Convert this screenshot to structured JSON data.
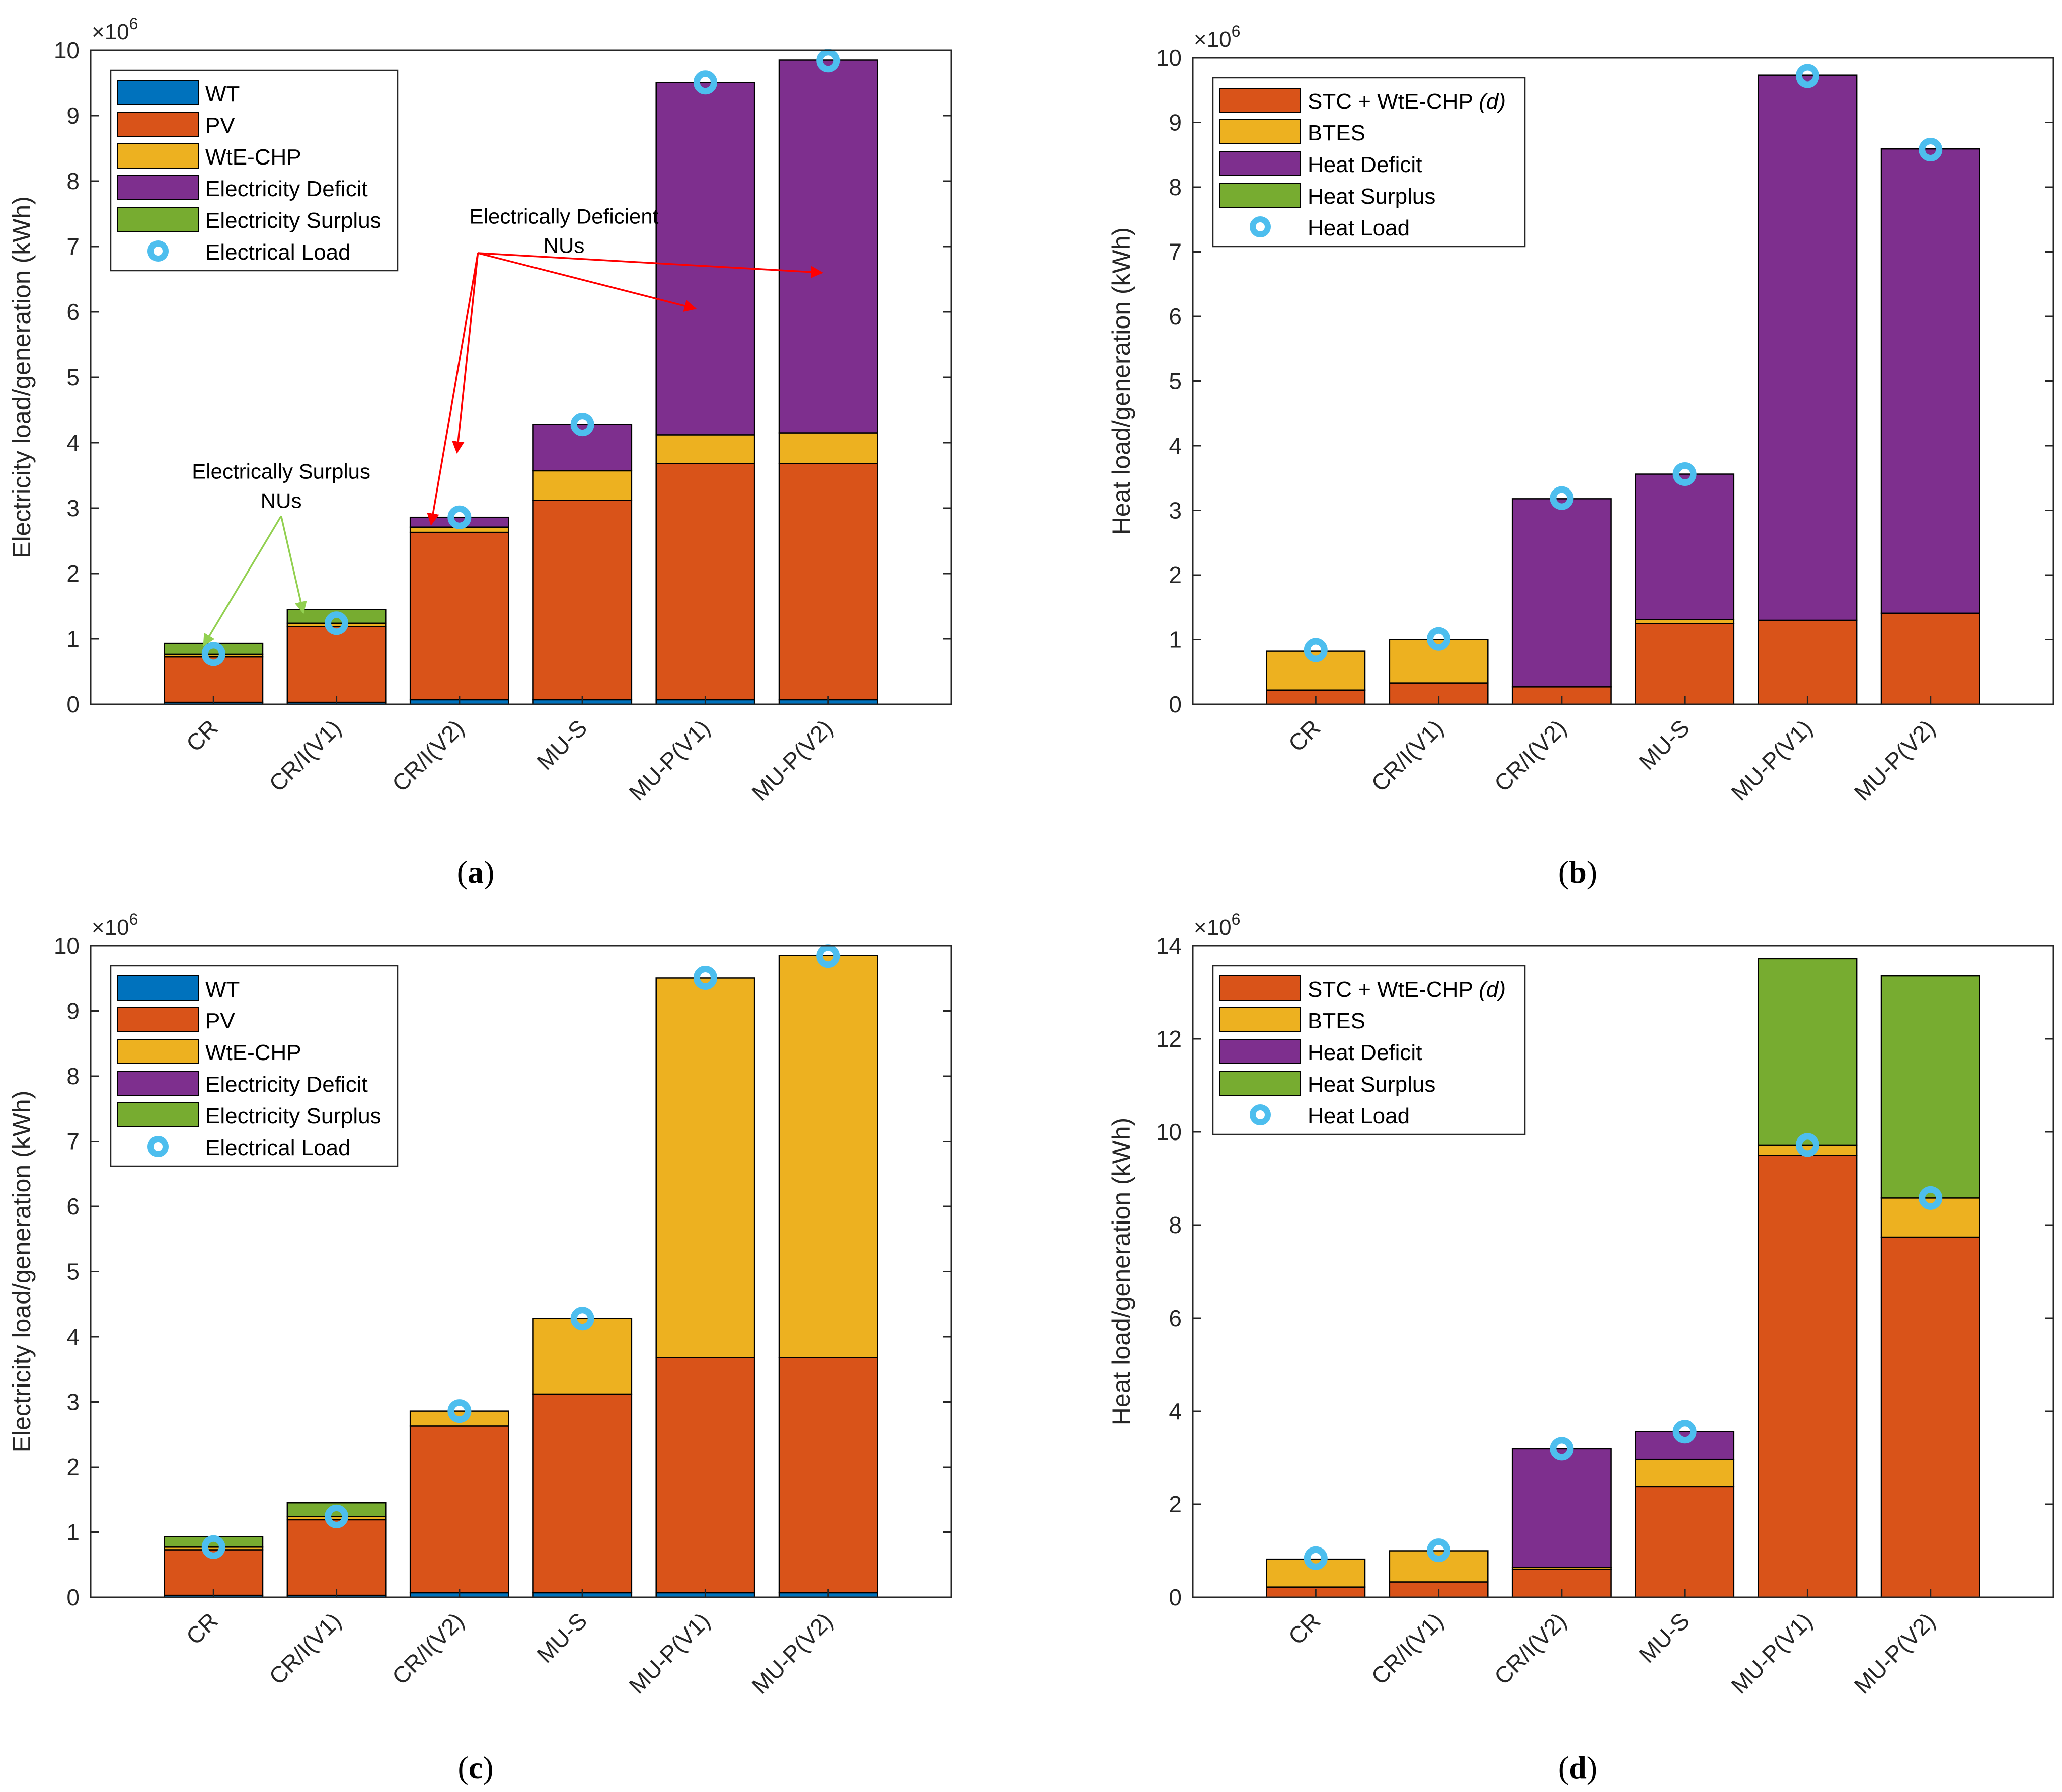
{
  "colors": {
    "WT": "#0072BD",
    "PV": "#D95319",
    "WtE": "#EDB120",
    "Deficit": "#7E2F8E",
    "Surplus": "#77AC30",
    "Load": "#4DBEEE",
    "red_arrow": "#FF0000",
    "green_arrow": "#92D050"
  },
  "chart_data": [
    {
      "id": "a",
      "type": "bar",
      "stacked": true,
      "panel_label": "(a)",
      "panel_letter": "a",
      "ylabel": "Electricity load/generation (kWh)",
      "exponent": "6",
      "ylim": [
        0,
        10
      ],
      "yticks": [
        0,
        1,
        2,
        3,
        4,
        5,
        6,
        7,
        8,
        9,
        10
      ],
      "categories": [
        "CR",
        "CR/I(V1)",
        "CR/I(V2)",
        "MU-S",
        "MU-P(V1)",
        "MU-P(V2)"
      ],
      "series": [
        {
          "name": "WT",
          "color_key": "WT",
          "values": [
            0.03,
            0.03,
            0.07,
            0.07,
            0.07,
            0.07
          ]
        },
        {
          "name": "PV",
          "color_key": "PV",
          "values": [
            0.7,
            1.16,
            2.56,
            3.05,
            3.61,
            3.61
          ]
        },
        {
          "name": "WtE-CHP",
          "color_key": "WtE",
          "values": [
            0.04,
            0.05,
            0.08,
            0.45,
            0.44,
            0.47
          ]
        },
        {
          "name": "Electricity Deficit",
          "color_key": "Deficit",
          "values": [
            0,
            0,
            0.15,
            0.71,
            5.39,
            5.7
          ]
        },
        {
          "name": "Electricity Surplus",
          "color_key": "Surplus",
          "values": [
            0.16,
            0.21,
            0,
            0,
            0,
            0
          ]
        }
      ],
      "load": {
        "name": "Electrical Load",
        "values": [
          0.77,
          1.24,
          2.86,
          4.28,
          9.51,
          9.84
        ]
      },
      "legend": {
        "entries": [
          "WT",
          "PV",
          "WtE-CHP",
          "Electricity Deficit",
          "Electricity Surplus"
        ],
        "load_label": "Electrical Load"
      },
      "annotations": [
        {
          "lines": [
            "Electrically Deficient",
            "NUs"
          ],
          "anchor_cat": 3.85,
          "anchor_val": 7.35,
          "color_key": "red_arrow",
          "from": [
            3.15,
            6.9
          ],
          "targets": [
            [
              2.77,
              2.75
            ],
            [
              2.98,
              3.85
            ],
            [
              4.92,
              6.05
            ],
            [
              5.95,
              6.6
            ]
          ]
        },
        {
          "lines": [
            "Electrically Surplus",
            "NUs"
          ],
          "anchor_cat": 1.55,
          "anchor_val": 3.45,
          "color_key": "green_arrow",
          "from": [
            1.55,
            2.88
          ],
          "targets": [
            [
              0.92,
              0.9
            ],
            [
              1.73,
              1.4
            ]
          ]
        }
      ]
    },
    {
      "id": "b",
      "type": "bar",
      "stacked": true,
      "panel_label": "(b)",
      "panel_letter": "b",
      "ylabel": "Heat load/generation (kWh)",
      "exponent": "6",
      "ylim": [
        0,
        10
      ],
      "yticks": [
        0,
        1,
        2,
        3,
        4,
        5,
        6,
        7,
        8,
        9,
        10
      ],
      "categories": [
        "CR",
        "CR/I(V1)",
        "CR/I(V2)",
        "MU-S",
        "MU-P(V1)",
        "MU-P(V2)"
      ],
      "series": [
        {
          "name": "STC + WtE-CHP (d)",
          "color_key": "PV",
          "values": [
            0.22,
            0.33,
            0.27,
            1.25,
            1.3,
            1.41
          ]
        },
        {
          "name": "BTES",
          "color_key": "WtE",
          "values": [
            0.6,
            0.67,
            0,
            0.06,
            0,
            0
          ]
        },
        {
          "name": "Heat Deficit",
          "color_key": "Deficit",
          "values": [
            0,
            0,
            2.91,
            2.25,
            8.43,
            7.18
          ]
        },
        {
          "name": "Heat Surplus",
          "color_key": "Surplus",
          "values": [
            0,
            0,
            0,
            0,
            0,
            0
          ]
        }
      ],
      "load": {
        "name": "Heat Load",
        "values": [
          0.84,
          1.01,
          3.19,
          3.56,
          9.72,
          8.58
        ]
      },
      "legend": {
        "entries": [
          "STC + WtE-CHP (d)",
          "BTES",
          "Heat Deficit",
          "Heat Surplus"
        ],
        "load_label": "Heat Load"
      },
      "annotations": []
    },
    {
      "id": "c",
      "type": "bar",
      "stacked": true,
      "panel_label": "(c)",
      "panel_letter": "c",
      "ylabel": "Electricity load/generation (kWh)",
      "exponent": "6",
      "ylim": [
        0,
        10
      ],
      "yticks": [
        0,
        1,
        2,
        3,
        4,
        5,
        6,
        7,
        8,
        9,
        10
      ],
      "categories": [
        "CR",
        "CR/I(V1)",
        "CR/I(V2)",
        "MU-S",
        "MU-P(V1)",
        "MU-P(V2)"
      ],
      "series": [
        {
          "name": "WT",
          "color_key": "WT",
          "values": [
            0.03,
            0.03,
            0.07,
            0.07,
            0.07,
            0.07
          ]
        },
        {
          "name": "PV",
          "color_key": "PV",
          "values": [
            0.7,
            1.16,
            2.56,
            3.05,
            3.61,
            3.61
          ]
        },
        {
          "name": "WtE-CHP",
          "color_key": "WtE",
          "values": [
            0.04,
            0.05,
            0.23,
            1.16,
            5.83,
            6.17
          ]
        },
        {
          "name": "Electricity Deficit",
          "color_key": "Deficit",
          "values": [
            0,
            0,
            0,
            0,
            0,
            0
          ]
        },
        {
          "name": "Electricity Surplus",
          "color_key": "Surplus",
          "values": [
            0.16,
            0.21,
            0,
            0,
            0,
            0
          ]
        }
      ],
      "load": {
        "name": "Electrical Load",
        "values": [
          0.77,
          1.24,
          2.86,
          4.28,
          9.51,
          9.84
        ]
      },
      "legend": {
        "entries": [
          "WT",
          "PV",
          "WtE-CHP",
          "Electricity Deficit",
          "Electricity Surplus"
        ],
        "load_label": "Electrical Load"
      },
      "annotations": []
    },
    {
      "id": "d",
      "type": "bar",
      "stacked": true,
      "panel_label": "(d)",
      "panel_letter": "d",
      "ylabel": "Heat load/generation (kWh)",
      "exponent": "6",
      "ylim": [
        0,
        14
      ],
      "yticks": [
        0,
        2,
        4,
        6,
        8,
        10,
        12,
        14
      ],
      "categories": [
        "CR",
        "CR/I(V1)",
        "CR/I(V2)",
        "MU-S",
        "MU-P(V1)",
        "MU-P(V2)"
      ],
      "series": [
        {
          "name": "STC + WtE-CHP (d)",
          "color_key": "PV",
          "values": [
            0.22,
            0.33,
            0.6,
            2.38,
            9.5,
            7.74
          ]
        },
        {
          "name": "BTES",
          "color_key": "WtE",
          "values": [
            0.6,
            0.67,
            0.04,
            0.58,
            0.22,
            0.84
          ]
        },
        {
          "name": "Heat Deficit",
          "color_key": "Deficit",
          "values": [
            0,
            0,
            2.55,
            0.6,
            0,
            0
          ]
        },
        {
          "name": "Heat Surplus",
          "color_key": "Surplus",
          "values": [
            0,
            0,
            0,
            0,
            4.0,
            4.77
          ]
        }
      ],
      "load": {
        "name": "Heat Load",
        "values": [
          0.84,
          1.01,
          3.19,
          3.56,
          9.72,
          8.58
        ]
      },
      "legend": {
        "entries": [
          "STC + WtE-CHP (d)",
          "BTES",
          "Heat Deficit",
          "Heat Surplus"
        ],
        "load_label": "Heat Load"
      },
      "annotations": []
    }
  ]
}
